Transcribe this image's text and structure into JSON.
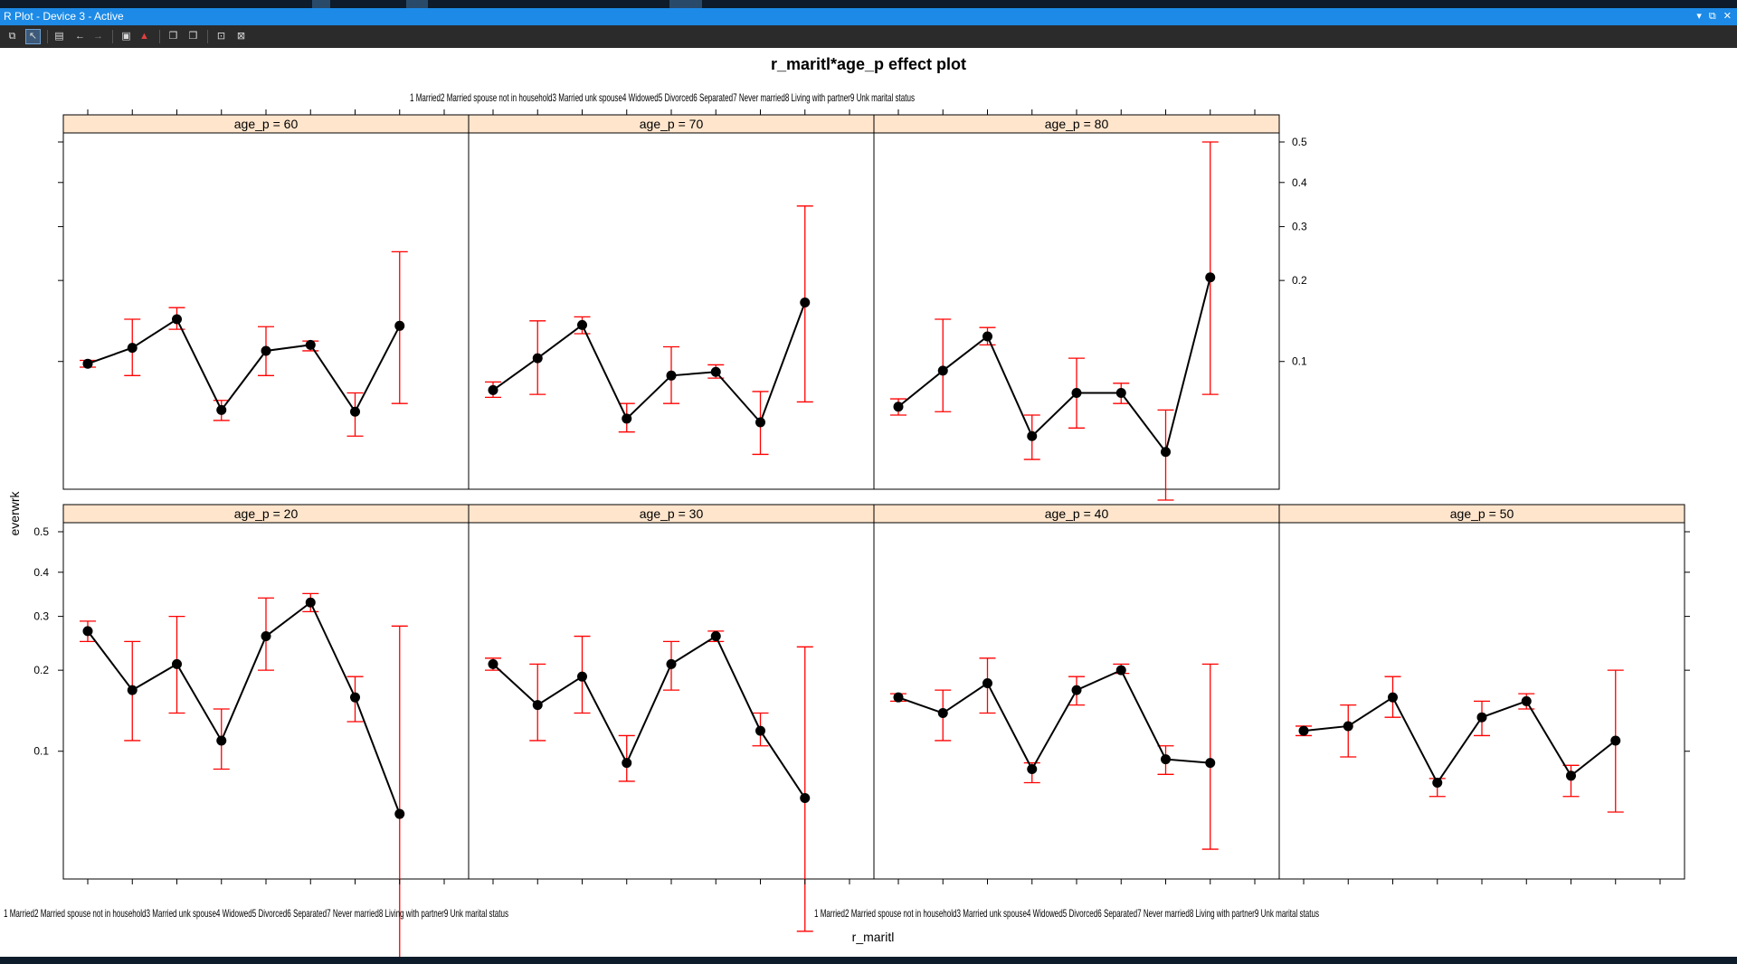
{
  "window": {
    "title": "R Plot - Device 3 - Active",
    "controls": [
      "▾",
      "⧉",
      "✕"
    ]
  },
  "toolbar": {
    "icons": [
      "new-window-icon",
      "select-pointer-icon",
      "print-icon",
      "back-arrow-icon",
      "forward-arrow-icon",
      "save-image-icon",
      "save-pdf-icon",
      "copy-icon",
      "copy-metafile-icon",
      "stay-on-top-icon",
      "clear-history-icon"
    ]
  },
  "colors": {
    "strip": "#ffe5cc",
    "line": "#000000",
    "errorbar": "#ff0000",
    "titlebar": "#1c8ae6",
    "toolbar": "#2b2b2b"
  },
  "chart_data": {
    "type": "line",
    "title": "r_maritl*age_p effect plot",
    "xlabel": "r_maritl",
    "ylabel": "everwrk",
    "y_scale": "logit",
    "yticks": [
      0.1,
      0.2,
      0.3,
      0.4,
      0.5
    ],
    "ylim": [
      0.03,
      0.5
    ],
    "categories": [
      "1 Married",
      "2 Married spouse not in household",
      "3 Married unk spouse",
      "4 Widowed",
      "5 Divorced",
      "6 Separated",
      "7 Never married",
      "8 Living with partner",
      "9 Unk marital status"
    ],
    "tick_labels_drawn": {
      "bottom_panel_axis": "1 Married2 Married spouse not in household3 Married unk spouse4 Widowed5 Divorced6 Separated7 Never married8 Living with partner9 Unk marital status",
      "top_panel_axis": "1 Married2 Married spouse not in household3 Married unk spouse4 Widowed5 Divorced6 Separated7 Never married8 Living with partner9 Unk marital status"
    },
    "panels": [
      {
        "strip": "age_p = 20",
        "fit": [
          0.27,
          0.17,
          0.21,
          0.11,
          0.26,
          0.33,
          0.16,
          0.056,
          null
        ],
        "lower": [
          0.25,
          0.11,
          0.14,
          0.085,
          0.2,
          0.31,
          0.13,
          0.008,
          null
        ],
        "upper": [
          0.29,
          0.25,
          0.3,
          0.145,
          0.34,
          0.35,
          0.19,
          0.28,
          null
        ]
      },
      {
        "strip": "age_p = 30",
        "fit": [
          0.21,
          0.15,
          0.19,
          0.09,
          0.21,
          0.26,
          0.12,
          0.065,
          null
        ],
        "lower": [
          0.2,
          0.11,
          0.14,
          0.076,
          0.17,
          0.25,
          0.105,
          0.018,
          null
        ],
        "upper": [
          0.22,
          0.21,
          0.26,
          0.115,
          0.25,
          0.27,
          0.14,
          0.24,
          null
        ]
      },
      {
        "strip": "age_p = 40",
        "fit": [
          0.16,
          0.14,
          0.18,
          0.085,
          0.17,
          0.2,
          0.093,
          0.09,
          null
        ],
        "lower": [
          0.155,
          0.11,
          0.14,
          0.075,
          0.15,
          0.195,
          0.081,
          0.04,
          null
        ],
        "upper": [
          0.165,
          0.17,
          0.22,
          0.09,
          0.19,
          0.21,
          0.105,
          0.21,
          null
        ]
      },
      {
        "strip": "age_p = 50",
        "fit": [
          0.12,
          0.125,
          0.16,
          0.075,
          0.135,
          0.155,
          0.08,
          0.11,
          null
        ],
        "lower": [
          0.115,
          0.095,
          0.135,
          0.066,
          0.115,
          0.145,
          0.066,
          0.057,
          null
        ],
        "upper": [
          0.125,
          0.15,
          0.19,
          0.078,
          0.155,
          0.165,
          0.088,
          0.2,
          null
        ]
      },
      {
        "strip": "age_p = 60",
        "fit": [
          0.098,
          0.113,
          0.145,
          0.064,
          0.11,
          0.116,
          0.063,
          0.137,
          null
        ],
        "lower": [
          0.095,
          0.088,
          0.133,
          0.058,
          0.088,
          0.11,
          0.05,
          0.068,
          null
        ],
        "upper": [
          0.101,
          0.145,
          0.16,
          0.07,
          0.136,
          0.12,
          0.075,
          0.25,
          null
        ]
      },
      {
        "strip": "age_p = 70",
        "fit": [
          0.077,
          0.103,
          0.138,
          0.059,
          0.088,
          0.091,
          0.057,
          0.167,
          null
        ],
        "lower": [
          0.072,
          0.074,
          0.128,
          0.052,
          0.068,
          0.086,
          0.042,
          0.069,
          null
        ],
        "upper": [
          0.083,
          0.143,
          0.148,
          0.068,
          0.114,
          0.097,
          0.076,
          0.345,
          null
        ]
      },
      {
        "strip": "age_p = 80",
        "fit": [
          0.066,
          0.092,
          0.125,
          0.05,
          0.075,
          0.075,
          0.043,
          0.205,
          null
        ],
        "lower": [
          0.061,
          0.063,
          0.116,
          0.04,
          0.054,
          0.068,
          0.027,
          0.074,
          null
        ],
        "upper": [
          0.071,
          0.145,
          0.135,
          0.061,
          0.103,
          0.082,
          0.064,
          0.5,
          null
        ]
      }
    ]
  }
}
